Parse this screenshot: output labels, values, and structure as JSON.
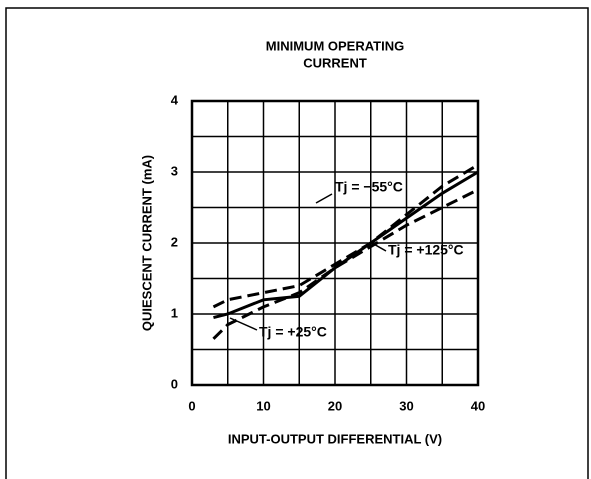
{
  "chart_data": {
    "type": "line",
    "title": [
      "MINIMUM OPERATING",
      "CURRENT"
    ],
    "x_label": "INPUT-OUTPUT DIFFERENTIAL (V)",
    "y_label": "QUIESCENT CURRENT (mA)",
    "x": [
      3,
      5,
      10,
      15,
      20,
      25,
      30,
      35,
      40
    ],
    "series": [
      {
        "name": "Tj = −55°C",
        "color": "#000000",
        "dashed": true,
        "values": [
          1.1,
          1.2,
          1.3,
          1.4,
          1.7,
          2.0,
          2.4,
          2.8,
          3.1
        ]
      },
      {
        "name": "Tj = +125°C",
        "color": "#000000",
        "dashed": true,
        "values": [
          0.65,
          0.85,
          1.1,
          1.3,
          1.65,
          1.95,
          2.25,
          2.5,
          2.75
        ]
      },
      {
        "name": "Tj = +25°C",
        "color": "#000000",
        "dashed": false,
        "values": [
          0.95,
          1.0,
          1.2,
          1.25,
          1.65,
          2.0,
          2.35,
          2.7,
          3.0
        ]
      }
    ],
    "xlim": [
      0,
      40
    ],
    "xticks": [
      0,
      10,
      20,
      30,
      40
    ],
    "x_minor_ticks": [
      5,
      15,
      25,
      35
    ],
    "ylim": [
      0,
      4
    ],
    "yticks": [
      0,
      1,
      2,
      3,
      4
    ],
    "y_minor_ticks": [
      0.5,
      1.5,
      2.5,
      3.5
    ],
    "grid": true
  }
}
